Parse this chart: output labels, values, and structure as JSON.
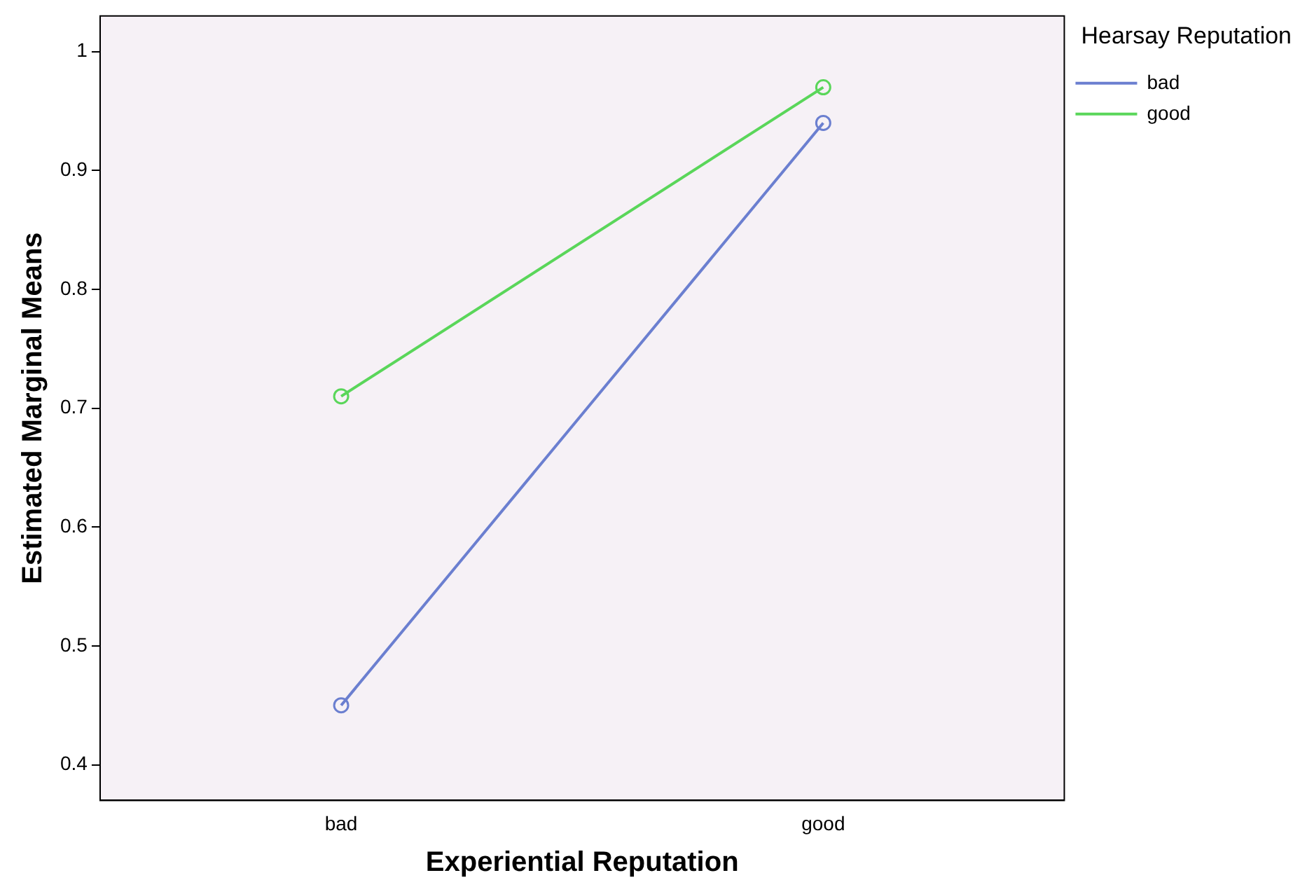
{
  "chart_data": {
    "type": "line",
    "xlabel": "Experiential Reputation",
    "ylabel": "Estimated Marginal Means",
    "legend_title": "Hearsay Reputation",
    "categories": [
      "bad",
      "good"
    ],
    "series": [
      {
        "name": "bad",
        "color": "#6b7fd0",
        "values": [
          0.45,
          0.94
        ]
      },
      {
        "name": "good",
        "color": "#5ad65a",
        "values": [
          0.71,
          0.97
        ]
      }
    ],
    "ylim": [
      0.37,
      1.03
    ],
    "yticks": [
      0.4,
      0.5,
      0.6,
      0.7,
      0.8,
      0.9,
      1
    ],
    "grid": false,
    "legend": "top right",
    "marker": "circle",
    "line_style": "solid"
  }
}
